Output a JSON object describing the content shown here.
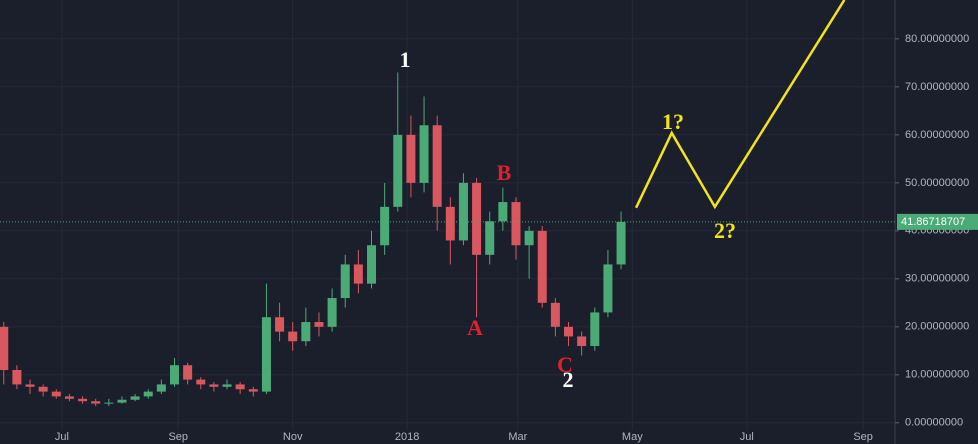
{
  "chart_data": {
    "type": "candlestick",
    "x": [
      -31,
      -24,
      -17,
      -10,
      -3,
      4,
      11,
      18,
      25,
      32,
      39,
      46,
      53,
      60,
      67,
      74,
      81,
      88,
      95,
      102,
      109,
      116,
      123,
      130,
      137,
      144,
      151,
      158,
      165,
      172,
      179,
      186,
      193,
      200,
      207,
      214,
      221,
      228,
      235,
      242,
      249,
      256,
      263,
      270,
      277,
      284,
      291,
      298
    ],
    "open": [
      20,
      11,
      8,
      7.5,
      6.5,
      5.5,
      5,
      4.5,
      4,
      4.2,
      4.8,
      5.5,
      6.5,
      8,
      12,
      9,
      8,
      7.5,
      8,
      7,
      6.5,
      22,
      19,
      17,
      21,
      20,
      26,
      33,
      29,
      37,
      45,
      60,
      50,
      62,
      45,
      38,
      50,
      35,
      42,
      46,
      37,
      40,
      25,
      20,
      18,
      16,
      23,
      33
    ],
    "close": [
      11,
      8,
      7.5,
      6.5,
      5.5,
      5,
      4.5,
      4,
      4.2,
      4.8,
      5.5,
      6.5,
      8,
      12,
      9,
      8,
      7.5,
      8,
      7,
      6.5,
      22,
      19,
      17,
      21,
      20,
      26,
      33,
      29,
      37,
      45,
      60,
      50,
      62,
      45,
      38,
      50,
      35,
      42,
      46,
      37,
      40,
      25,
      20,
      18,
      16,
      23,
      33,
      41.87
    ],
    "high": [
      21,
      12,
      9,
      8,
      7,
      6,
      5.5,
      5,
      5,
      5.5,
      6,
      7,
      9,
      13.5,
      12.5,
      9.5,
      8.5,
      9,
      8.5,
      7.5,
      29,
      25,
      21,
      24,
      23,
      28,
      35,
      36,
      40,
      50,
      73,
      64,
      68,
      64,
      47,
      52,
      51,
      44,
      49,
      47,
      41,
      41,
      26,
      21,
      19,
      24,
      36,
      44
    ],
    "low": [
      8,
      7,
      6,
      5.5,
      5,
      4.5,
      4,
      3.5,
      3.5,
      4,
      4.5,
      5,
      6,
      7.5,
      8,
      7,
      6.5,
      7,
      6,
      5.5,
      6,
      17,
      15,
      16,
      18,
      19,
      24,
      27,
      28,
      35,
      44,
      47,
      48,
      40,
      33,
      37,
      22,
      33,
      40,
      34,
      30,
      24,
      18,
      16,
      14,
      15,
      22,
      32
    ],
    "up_color": "#4bab76",
    "down_color": "#d9575e",
    "xlim": [
      -33,
      444
    ],
    "xticks": [
      {
        "value": 0,
        "label": "Jul"
      },
      {
        "value": 62,
        "label": "Sep"
      },
      {
        "value": 123,
        "label": "Nov"
      },
      {
        "value": 184,
        "label": "2018"
      },
      {
        "value": 243,
        "label": "Mar"
      },
      {
        "value": 304,
        "label": "May"
      },
      {
        "value": 365,
        "label": "Jul"
      },
      {
        "value": 427,
        "label": "Sep"
      }
    ],
    "ylim": [
      -1.5,
      88.1
    ],
    "yticks": [
      {
        "value": 0,
        "label": "0.00000000"
      },
      {
        "value": 10,
        "label": "10.00000000"
      },
      {
        "value": 20,
        "label": "20.00000000"
      },
      {
        "value": 30,
        "label": "30.00000000"
      },
      {
        "value": 40,
        "label": "40.00000000"
      },
      {
        "value": 50,
        "label": "50.00000000"
      },
      {
        "value": 60,
        "label": "60.00000000"
      },
      {
        "value": 70,
        "label": "70.00000000"
      },
      {
        "value": 80,
        "label": "80.00000000"
      }
    ],
    "grid": true,
    "last_price": 41.86718707,
    "projection": {
      "color": "#f2e41b",
      "x": [
        306,
        325,
        348,
        417
      ],
      "y": [
        44.8,
        60.4,
        45,
        88.1
      ]
    },
    "annotations": [
      {
        "text": "1",
        "color": "#ffffff"
      },
      {
        "text": "A",
        "color": "#e0202a"
      },
      {
        "text": "B",
        "color": "#e0202a"
      },
      {
        "text": "C",
        "color": "#e0202a"
      },
      {
        "text": "2",
        "color": "#ffffff"
      },
      {
        "text": "1?",
        "color": "#f2e41b"
      },
      {
        "text": "2?",
        "color": "#f2e41b"
      }
    ]
  }
}
